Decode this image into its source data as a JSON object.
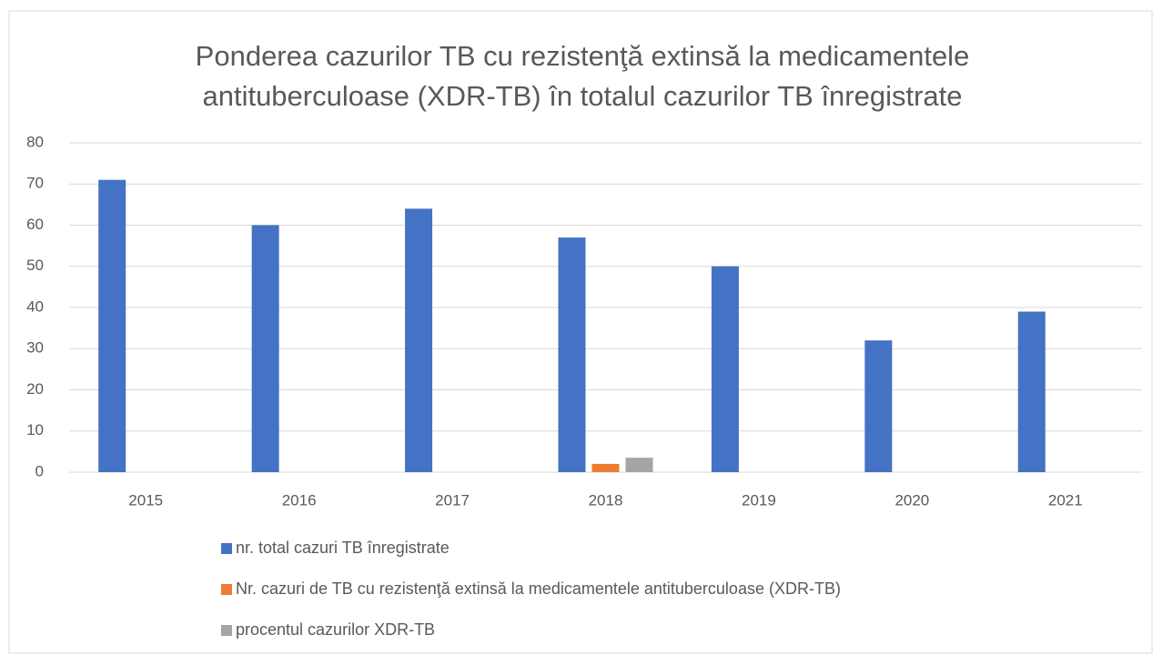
{
  "chart_data": {
    "type": "bar",
    "title": "Ponderea cazurilor TB cu rezistenţă extinsă la medicamentele antituberculoase (XDR-TB) în totalul cazurilor TB înregistrate",
    "categories": [
      "2015",
      "2016",
      "2017",
      "2018",
      "2019",
      "2020",
      "2021"
    ],
    "series": [
      {
        "name": "nr. total cazuri TB înregistrate",
        "color": "#4472c4",
        "values": [
          71,
          60,
          64,
          57,
          50,
          32,
          39
        ]
      },
      {
        "name": "Nr. cazuri de TB cu rezistenţă extinsă la medicamentele antituberculoase (XDR-TB)",
        "color": "#ed7d31",
        "values": [
          0,
          0,
          0,
          2,
          0,
          0,
          0
        ]
      },
      {
        "name": "procentul cazurilor XDR-TB",
        "color": "#a5a5a5",
        "values": [
          0,
          0,
          0,
          3.5,
          0,
          0,
          0
        ]
      }
    ],
    "ylim": [
      0,
      80
    ],
    "yticks": [
      0,
      10,
      20,
      30,
      40,
      50,
      60,
      70,
      80
    ],
    "grid": true,
    "legend": "bottom"
  }
}
